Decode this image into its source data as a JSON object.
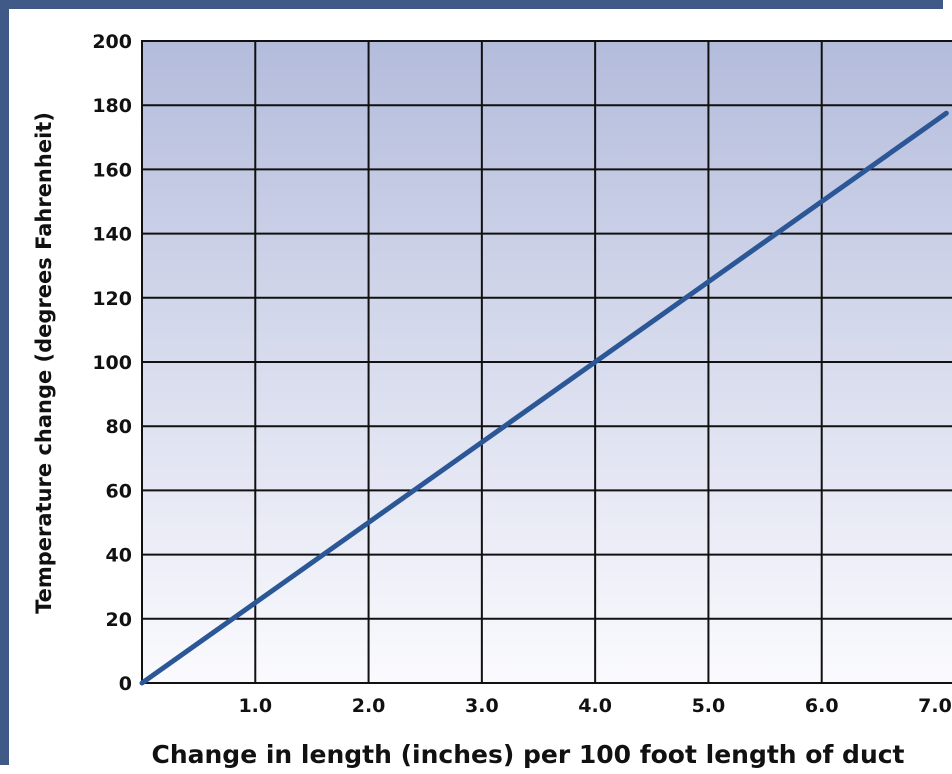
{
  "chart_data": {
    "type": "line",
    "title": "",
    "xlabel": "Change in length (inches) per 100 foot length of duct",
    "ylabel": "Temperature change (degrees Fahrenheit)",
    "xlim": [
      0,
      7.0
    ],
    "ylim": [
      0,
      200
    ],
    "x_ticks": [
      1.0,
      2.0,
      3.0,
      4.0,
      5.0,
      6.0,
      7.0
    ],
    "x_tick_labels": [
      "1.0",
      "2.0",
      "3.0",
      "4.0",
      "5.0",
      "6.0",
      "7.0"
    ],
    "y_ticks": [
      0,
      20,
      40,
      60,
      80,
      100,
      120,
      140,
      160,
      180,
      200
    ],
    "y_tick_labels": [
      "0",
      "20",
      "40",
      "60",
      "80",
      "100",
      "120",
      "140",
      "160",
      "180",
      "200"
    ],
    "grid": true,
    "series": [
      {
        "color": "#2b5797",
        "x": [
          0,
          1.0,
          2.0,
          3.0,
          4.0,
          5.0,
          6.0,
          7.0
        ],
        "y": [
          0,
          25,
          50,
          75,
          100,
          125,
          150,
          175
        ]
      }
    ],
    "colors": {
      "frame": "#3f5a87",
      "plot_top": "#b4bcdc",
      "plot_bottom": "#fbfbfe",
      "grid": "#111111",
      "line": "#2b5797"
    }
  }
}
